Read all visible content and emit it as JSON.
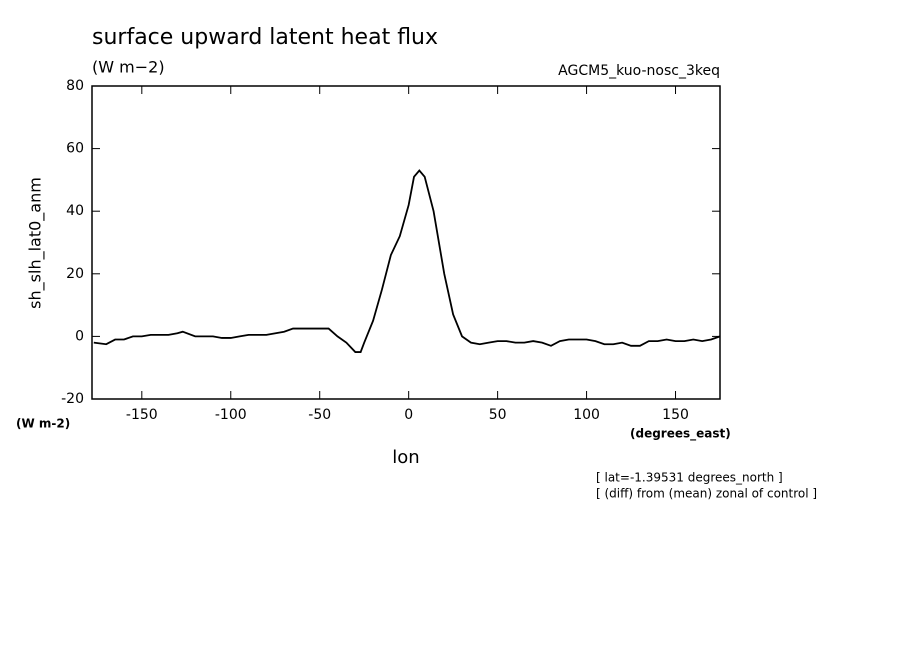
{
  "chart_data": {
    "type": "line",
    "title": "surface upward latent heat flux",
    "subtitle": "(W m−2)",
    "run_label": "AGCM5_kuo-nosc_3keq",
    "y_label": "sh_slh_lat0_anm",
    "y_units": "(W m-2)",
    "x_label": "lon",
    "x_units": "(degrees_east)",
    "notes": [
      "[ lat=-1.39531 degrees_north ]",
      "[ (diff) from (mean) zonal of control ]"
    ],
    "x": [
      -177,
      -170,
      -165,
      -160,
      -155,
      -150,
      -145,
      -140,
      -135,
      -130,
      -127,
      -120,
      -115,
      -110,
      -105,
      -100,
      -95,
      -90,
      -85,
      -80,
      -70,
      -65,
      -60,
      -55,
      -50,
      -45,
      -40,
      -35,
      -30,
      -27,
      -25,
      -20,
      -15,
      -10,
      -5,
      0,
      3,
      6,
      9,
      14,
      20,
      25,
      30,
      35,
      40,
      45,
      50,
      55,
      60,
      65,
      70,
      75,
      80,
      85,
      90,
      95,
      100,
      105,
      110,
      115,
      120,
      125,
      130,
      135,
      140,
      145,
      150,
      155,
      160,
      165,
      170,
      175
    ],
    "series": [
      {
        "color": "#000000",
        "values": [
          -2,
          -2.5,
          -1,
          -1,
          0,
          0,
          0.5,
          0.5,
          0.5,
          1,
          1.5,
          0,
          0,
          0,
          -0.5,
          -0.5,
          0,
          0.5,
          0.5,
          0.5,
          1.5,
          2.5,
          2.5,
          2.5,
          2.5,
          2.5,
          0,
          -2,
          -5,
          -5,
          -2,
          5,
          15,
          26,
          32,
          42,
          51,
          53,
          51,
          40,
          20,
          7,
          0,
          -2,
          -2.5,
          -2,
          -1.5,
          -1.5,
          -2,
          -2,
          -1.5,
          -2,
          -3,
          -1.5,
          -1,
          -1,
          -1,
          -1.5,
          -2.5,
          -2.5,
          -2,
          -3,
          -3,
          -1.5,
          -1.5,
          -1,
          -1.5,
          -1.5,
          -1,
          -1.5,
          -1,
          0
        ]
      }
    ],
    "xlim": [
      -178,
      175
    ],
    "ylim": [
      -20,
      80
    ],
    "xticks": [
      -150,
      -100,
      -50,
      0,
      50,
      100,
      150
    ],
    "yticks": [
      -20,
      0,
      20,
      40,
      60,
      80
    ]
  }
}
